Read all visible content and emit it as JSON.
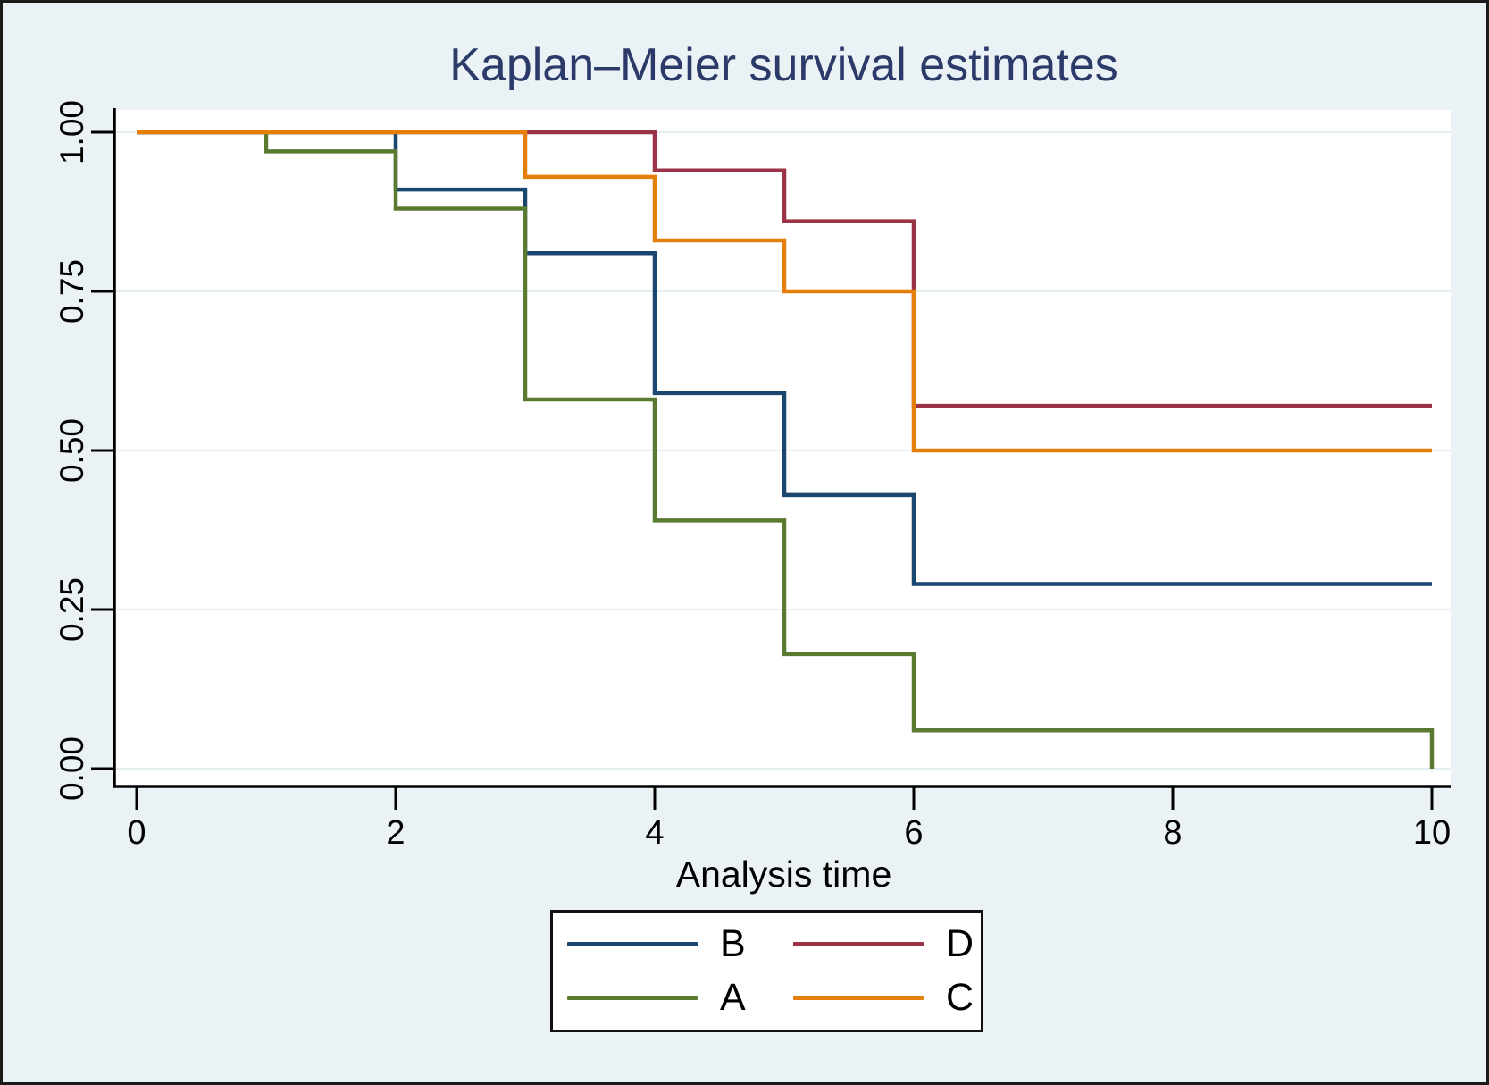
{
  "colors": {
    "background": "#ebf2f5",
    "plot_background": "#ffffff",
    "gridline": "#e4eef1",
    "axis": "#000000",
    "title": "#2b3a68",
    "navy": "#1a476f",
    "maroon": "#9c3246",
    "green": "#5a7a32",
    "orange": "#e67e0a"
  },
  "chart_data": {
    "type": "line",
    "subtype": "kaplan-meier-step",
    "title": "Kaplan–Meier survival estimates",
    "xlabel": "Analysis time",
    "ylabel": "",
    "xlim": [
      0,
      10
    ],
    "ylim": [
      0,
      1
    ],
    "grid": "horizontal",
    "x_ticks": [
      {
        "v": 0,
        "label": "0"
      },
      {
        "v": 2,
        "label": "2"
      },
      {
        "v": 4,
        "label": "4"
      },
      {
        "v": 6,
        "label": "6"
      },
      {
        "v": 8,
        "label": "8"
      },
      {
        "v": 10,
        "label": "10"
      }
    ],
    "y_ticks": [
      {
        "v": 1.0,
        "label": "1.00"
      },
      {
        "v": 0.75,
        "label": "0.75"
      },
      {
        "v": 0.5,
        "label": "0.50"
      },
      {
        "v": 0.25,
        "label": "0.25"
      },
      {
        "v": 0.0,
        "label": "0.00"
      }
    ],
    "series": [
      {
        "name": "B",
        "color": "#1a476f",
        "points": [
          [
            0,
            1.0
          ],
          [
            2,
            0.91
          ],
          [
            3,
            0.81
          ],
          [
            4,
            0.59
          ],
          [
            5,
            0.43
          ],
          [
            6,
            0.29
          ],
          [
            10,
            0.29
          ]
        ]
      },
      {
        "name": "D",
        "color": "#9c3246",
        "points": [
          [
            0,
            1.0
          ],
          [
            4,
            0.94
          ],
          [
            5,
            0.86
          ],
          [
            6,
            0.57
          ],
          [
            10,
            0.57
          ]
        ]
      },
      {
        "name": "A",
        "color": "#5a7a32",
        "points": [
          [
            0,
            1.0
          ],
          [
            1,
            0.97
          ],
          [
            2,
            0.88
          ],
          [
            3,
            0.58
          ],
          [
            4,
            0.39
          ],
          [
            5,
            0.18
          ],
          [
            6,
            0.06
          ],
          [
            10,
            0.0
          ]
        ]
      },
      {
        "name": "C",
        "color": "#e67e0a",
        "points": [
          [
            0,
            1.0
          ],
          [
            3,
            0.93
          ],
          [
            4,
            0.83
          ],
          [
            5,
            0.75
          ],
          [
            6,
            0.5
          ],
          [
            10,
            0.5
          ]
        ]
      }
    ],
    "legend": {
      "position": "bottom-center",
      "layout": "2x2",
      "items": [
        {
          "label": "B",
          "color": "#1a476f"
        },
        {
          "label": "D",
          "color": "#9c3246"
        },
        {
          "label": "A",
          "color": "#5a7a32"
        },
        {
          "label": "C",
          "color": "#e67e0a"
        }
      ]
    }
  }
}
